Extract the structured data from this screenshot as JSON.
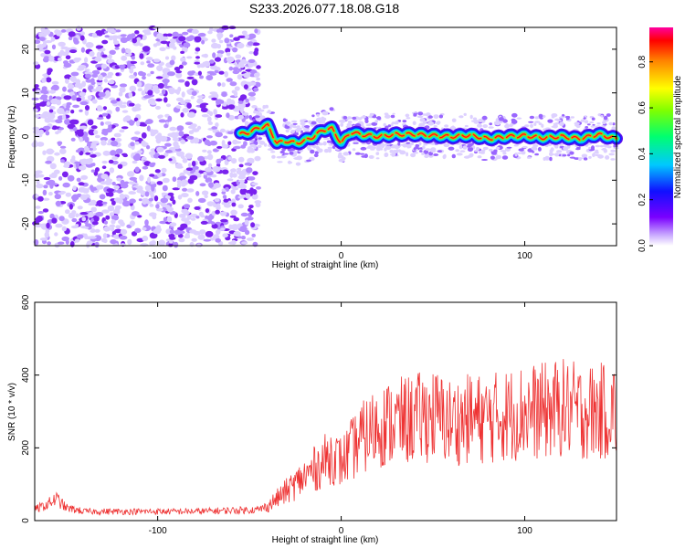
{
  "title": "S233.2026.077.18.08.G18",
  "chart_data": [
    {
      "type": "heatmap",
      "xlabel": "Height of straight line (km)",
      "ylabel": "Frequency (Hz)",
      "xlim": [
        -167,
        150
      ],
      "ylim": [
        -25,
        25
      ],
      "x_ticks": [
        -100,
        0,
        100
      ],
      "x_tick_labels": [
        "-100",
        "0",
        "100"
      ],
      "y_ticks": [
        -20,
        -10,
        0,
        10,
        20
      ],
      "y_tick_labels": [
        "-20",
        "-10",
        "0",
        "10",
        "20"
      ],
      "ridge": {
        "description_x": [
          -65,
          -55,
          -50,
          -45,
          -40,
          -35,
          -30,
          -25,
          -20,
          -15,
          -10,
          -5,
          0,
          5,
          10,
          20,
          30,
          40,
          50,
          60,
          70,
          80,
          90,
          100,
          110,
          120,
          130,
          140,
          150
        ],
        "frequency_hz": [
          1.5,
          0.5,
          1.0,
          2.0,
          2.5,
          -1.5,
          -1.0,
          -1.5,
          -1.0,
          0.0,
          1.5,
          1.8,
          -1.5,
          1.0,
          0.5,
          0.0,
          0.5,
          0.5,
          0.2,
          0.0,
          0.3,
          -0.5,
          0.0,
          0.2,
          -0.3,
          0.0,
          -0.5,
          0.5,
          -0.5
        ]
      },
      "noise_region_x": [
        -167,
        -45
      ],
      "colorbar": {
        "label": "Normalized spectral amplitude",
        "ticks": [
          0.0,
          0.2,
          0.4,
          0.6,
          0.8
        ],
        "tick_labels": [
          "0.0",
          "0.2",
          "0.4",
          "0.6",
          "0.8"
        ],
        "range": [
          0,
          0.95
        ]
      }
    },
    {
      "type": "line",
      "xlabel": "Height of straight line (km)",
      "ylabel": "SNR (10 * v/v)",
      "xlim": [
        -167,
        150
      ],
      "ylim": [
        0,
        600
      ],
      "x_ticks": [
        -100,
        0,
        100
      ],
      "x_tick_labels": [
        "-100",
        "0",
        "100"
      ],
      "y_ticks": [
        0,
        200,
        400,
        600
      ],
      "y_tick_labels": [
        "0",
        "200",
        "400",
        "600"
      ],
      "series": [
        {
          "color": "#ee3333",
          "x": [
            -167,
            -160,
            -155,
            -150,
            -140,
            -120,
            -100,
            -80,
            -60,
            -45,
            -40,
            -35,
            -30,
            -25,
            -20,
            -15,
            -10,
            -5,
            0,
            5,
            10,
            15,
            20,
            30,
            40,
            50,
            60,
            70,
            80,
            90,
            100,
            110,
            120,
            130,
            140,
            150
          ],
          "values": [
            30,
            45,
            60,
            35,
            25,
            25,
            25,
            25,
            28,
            30,
            40,
            60,
            80,
            100,
            120,
            140,
            160,
            180,
            160,
            190,
            220,
            240,
            260,
            270,
            280,
            290,
            270,
            280,
            280,
            290,
            300,
            300,
            310,
            300,
            300,
            300
          ]
        }
      ]
    }
  ],
  "colors": {
    "series": "#ee3333",
    "axis": "#000000"
  }
}
